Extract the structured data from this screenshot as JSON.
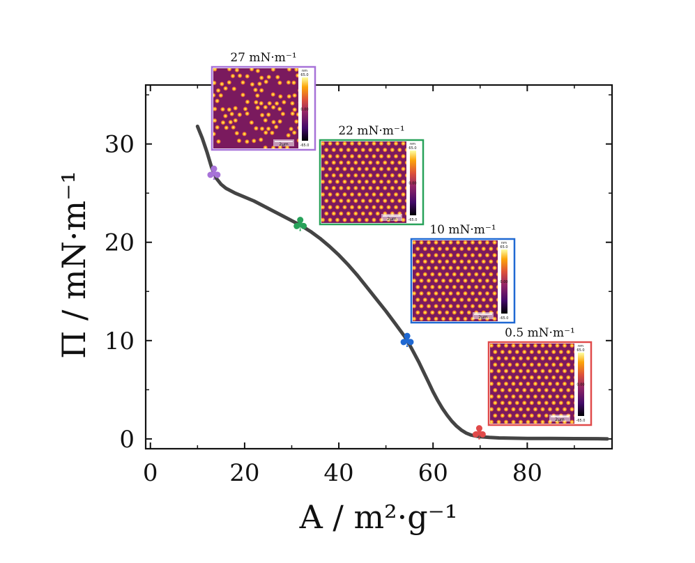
{
  "chart_data": {
    "type": "line",
    "title": "",
    "xlabel": "A / m²·g⁻¹",
    "ylabel": "Π / mN·m⁻¹",
    "xlim": [
      -1,
      98
    ],
    "ylim": [
      -1,
      36
    ],
    "xticks": [
      0,
      20,
      40,
      60,
      80
    ],
    "yticks": [
      0,
      10,
      20,
      30
    ],
    "grid": false,
    "series": [
      {
        "name": "isotherm",
        "color": "#444444",
        "x": [
          10,
          11,
          12,
          13,
          14,
          15,
          16,
          18,
          20,
          22,
          24,
          26,
          28,
          30,
          32,
          34,
          36,
          38,
          40,
          42,
          44,
          46,
          48,
          50,
          52,
          54,
          55,
          56,
          57,
          58,
          59,
          60,
          61,
          62,
          63,
          64,
          65,
          66,
          67,
          68,
          69,
          70,
          72,
          74,
          76,
          80,
          85,
          90,
          95,
          97
        ],
        "y": [
          31.8,
          30.6,
          29.2,
          27.6,
          26.5,
          25.9,
          25.5,
          25.0,
          24.6,
          24.2,
          23.7,
          23.2,
          22.7,
          22.2,
          21.7,
          21.1,
          20.4,
          19.6,
          18.7,
          17.7,
          16.6,
          15.4,
          14.2,
          13.0,
          11.7,
          10.4,
          9.6,
          8.7,
          7.8,
          6.8,
          5.8,
          4.8,
          3.9,
          3.1,
          2.4,
          1.8,
          1.3,
          0.9,
          0.6,
          0.4,
          0.3,
          0.22,
          0.15,
          0.1,
          0.08,
          0.05,
          0.04,
          0.03,
          0.02,
          0.0
        ]
      }
    ],
    "markers": [
      {
        "label": "27 mN·m⁻¹",
        "x": 13.5,
        "y": 27.0,
        "color": "#a772d8",
        "symbol": "♣"
      },
      {
        "label": "22 mN·m⁻¹",
        "x": 31.8,
        "y": 21.8,
        "color": "#28a25a",
        "symbol": "♣"
      },
      {
        "label": "10 mN·m⁻¹",
        "x": 54.5,
        "y": 10.0,
        "color": "#1f68d2",
        "symbol": "♣"
      },
      {
        "label": "0.5 mN·m⁻¹",
        "x": 69.8,
        "y": 0.6,
        "color": "#e04a4a",
        "symbol": "♣"
      }
    ],
    "insets": [
      {
        "title": "27 mN·m⁻¹",
        "border_color": "#a772d8",
        "pattern": "disordered",
        "colorbar_unit": "nm",
        "colorbar_max": "65.0",
        "colorbar_mid": "0.00",
        "colorbar_min": "-65.0",
        "scalebar": "2μm"
      },
      {
        "title": "22 mN·m⁻¹",
        "border_color": "#28a25a",
        "pattern": "hexagonal",
        "colorbar_unit": "nm",
        "colorbar_max": "65.0",
        "colorbar_mid": "0.00",
        "colorbar_min": "-65.0",
        "scalebar": "2μm"
      },
      {
        "title": "10 mN·m⁻¹",
        "border_color": "#1f68d2",
        "pattern": "hexagonal",
        "colorbar_unit": "nm",
        "colorbar_max": "65.0",
        "colorbar_mid": "0.00",
        "colorbar_min": "-65.0",
        "scalebar": "2μm"
      },
      {
        "title": "0.5 mN·m⁻¹",
        "border_color": "#e04a4a",
        "pattern": "hexagonal",
        "colorbar_unit": "nm",
        "colorbar_max": "65.0",
        "colorbar_mid": "0.00",
        "colorbar_min": "-65.0",
        "scalebar": "2μm"
      }
    ]
  }
}
